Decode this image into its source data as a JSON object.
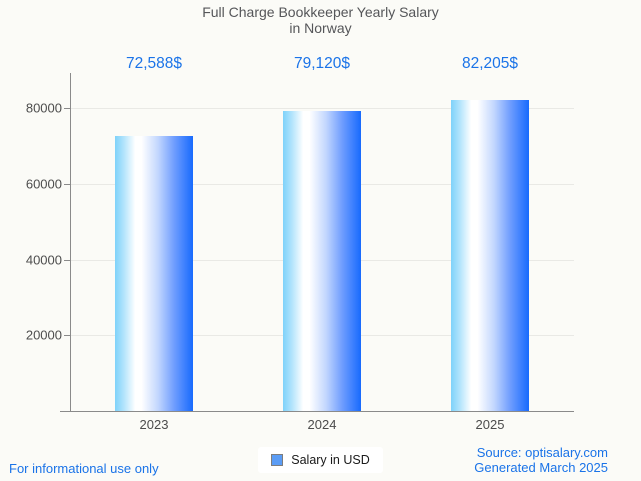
{
  "title": {
    "line1": "Full Charge Bookkeeper Yearly Salary",
    "line2": "in Norway"
  },
  "legend": {
    "label": "Salary in USD"
  },
  "footer": {
    "disclaimer": "For informational use only",
    "source_line1": "Source: optisalary.com",
    "source_line2": "Generated March 2025"
  },
  "colors": {
    "accent_blue": "#1a73e8",
    "background": "#fbfbf7",
    "title_text": "#555659",
    "tick_text": "#4d4d4d",
    "axis_line": "#8a8a8a",
    "gridline": "#e9e9e5",
    "legend_marker_fill": "#5b9cf5",
    "legend_marker_border": "#7d7d7d",
    "bar_gradient": [
      "#7ed2fa",
      "#b5e5fc",
      "#ffffff",
      "#c3d7fe",
      "#6f9dfe",
      "#176afd"
    ]
  },
  "chart_data": {
    "type": "bar",
    "title": "Full Charge Bookkeeper Yearly Salary in Norway",
    "categories": [
      "2023",
      "2024",
      "2025"
    ],
    "series": [
      {
        "name": "Salary in USD",
        "values": [
          72588,
          79120,
          82205
        ]
      }
    ],
    "value_labels": [
      "72,588$",
      "79,120$",
      "82,205$"
    ],
    "xlabel": "",
    "ylabel": "",
    "yticks": [
      20000,
      40000,
      60000,
      80000
    ],
    "ylim": [
      0,
      89000
    ],
    "grid": true,
    "legend_position": "bottom"
  }
}
